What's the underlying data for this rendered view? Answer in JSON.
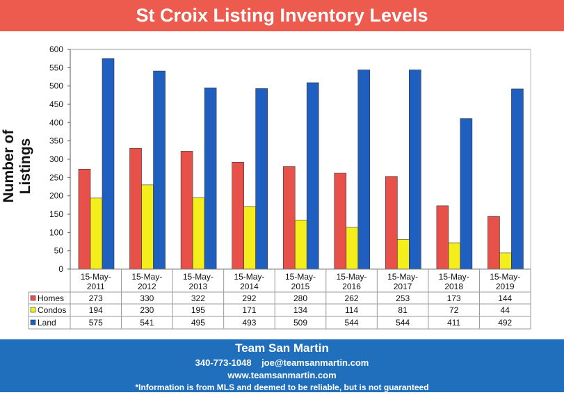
{
  "chart_data": {
    "type": "bar",
    "title": "St Croix Listing Inventory Levels",
    "ylabel": "Number of Listings",
    "xlabel": "",
    "ylim": [
      0,
      600
    ],
    "yticks": [
      0,
      50,
      100,
      150,
      200,
      250,
      300,
      350,
      400,
      450,
      500,
      550,
      600
    ],
    "grid": false,
    "legend": "data-table-left",
    "categories": [
      [
        "15-May-",
        "2011"
      ],
      [
        "15-May-",
        "2012"
      ],
      [
        "15-May-",
        "2013"
      ],
      [
        "15-May-",
        "2014"
      ],
      [
        "15-May-",
        "2015"
      ],
      [
        "15-May-",
        "2016"
      ],
      [
        "15-May-",
        "2017"
      ],
      [
        "15-May-",
        "2018"
      ],
      [
        "15-May-",
        "2019"
      ]
    ],
    "series": [
      {
        "name": "Homes",
        "color": "#e8504a",
        "values": [
          273,
          330,
          322,
          292,
          280,
          262,
          253,
          173,
          144
        ]
      },
      {
        "name": "Condos",
        "color": "#f4ee1c",
        "values": [
          194,
          230,
          195,
          171,
          134,
          114,
          81,
          72,
          44
        ]
      },
      {
        "name": "Land",
        "color": "#1f5fbf",
        "values": [
          575,
          541,
          495,
          493,
          509,
          544,
          544,
          411,
          492
        ]
      }
    ]
  },
  "footer": {
    "name": "Team San Martin",
    "phone": "340-773-1048",
    "email": "joe@teamsanmartin.com",
    "website": "www.teamsanmartin.com",
    "disclaimer": "*Information is from MLS and deemed to be reliable, but is not guaranteed"
  }
}
